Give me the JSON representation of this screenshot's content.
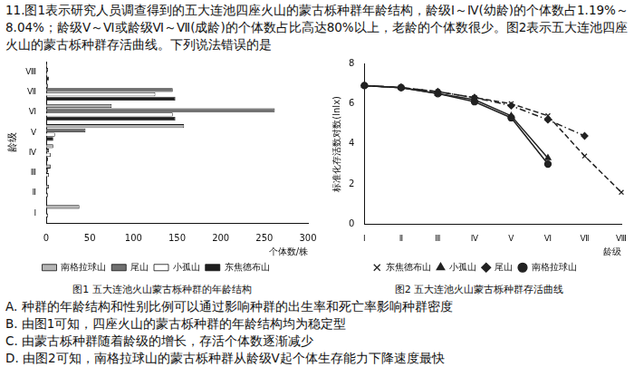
{
  "question": {
    "number": "11.",
    "stem": "图1表示研究人员调查得到的五大连池四座火山的蒙古栎种群年龄结构，龄级Ⅰ～Ⅳ(幼龄)的个体数占1.19%～8.04%；龄级Ⅴ～Ⅵ或龄级Ⅵ～Ⅶ(成龄)的个体数占比高达80%以上，老龄的个体数很少。图2表示五大连池四座火山的蒙古栎种群存活曲线。下列说法错误的是",
    "options": [
      {
        "label": "A.",
        "text": "种群的年龄结构和性别比例可以通过影响种群的出生率和死亡率影响种群密度"
      },
      {
        "label": "B.",
        "text": "由图1可知，四座火山的蒙古栎种群的年龄结构均为稳定型"
      },
      {
        "label": "C.",
        "text": "由蒙古栎种群随着龄级的增长，存活个体数逐渐减少"
      },
      {
        "label": "D.",
        "text": "由图2可知，南格拉球山的蒙古栎种群从龄级Ⅴ起个体生存能力下降速度最快"
      }
    ]
  },
  "chart_data": [
    {
      "type": "bar",
      "orientation": "horizontal",
      "title": "图1  五大连池火山蒙古栎种群的年龄结构",
      "x_label": "个体数/株",
      "y_label": "龄级",
      "categories": [
        "Ⅰ",
        "Ⅱ",
        "Ⅲ",
        "Ⅳ",
        "Ⅴ",
        "Ⅵ",
        "Ⅶ",
        "Ⅷ"
      ],
      "series": [
        {
          "name": "南格拉球山",
          "color": "#b5b5b5",
          "values": [
            38,
            3,
            5,
            8,
            158,
            75,
            2,
            1
          ]
        },
        {
          "name": "尾山",
          "color": "#707070",
          "values": [
            0,
            1,
            2,
            3,
            45,
            262,
            145,
            2
          ]
        },
        {
          "name": "小孤山",
          "color": "#ffffff",
          "values": [
            2,
            2,
            3,
            5,
            10,
            145,
            125,
            1
          ]
        },
        {
          "name": "东焦德布山",
          "color": "#1e1e1e",
          "values": [
            1,
            1,
            1,
            2,
            8,
            148,
            148,
            3
          ]
        }
      ],
      "xlim": [
        0,
        300
      ],
      "xticks": [
        0,
        50,
        100,
        150,
        200,
        250,
        300
      ],
      "grid": false,
      "legend": "bottom"
    },
    {
      "type": "line",
      "title": "图2  五大连池火山蒙古栎种群存活曲线",
      "x_label": "龄级",
      "y_label": "标准化存活数对数(lnlx)",
      "categories": [
        "Ⅰ",
        "Ⅱ",
        "Ⅲ",
        "Ⅳ",
        "Ⅴ",
        "Ⅵ",
        "Ⅶ",
        "Ⅷ"
      ],
      "series": [
        {
          "name": "东焦德布山",
          "color": "#222222",
          "marker": "cross",
          "line_style": "dashed",
          "values": [
            6.9,
            6.8,
            6.6,
            6.3,
            6.0,
            5.4,
            3.4,
            1.6
          ]
        },
        {
          "name": "小孤山",
          "color": "#222222",
          "marker": "triangle",
          "line_style": "solid",
          "values": [
            6.9,
            6.8,
            6.5,
            6.2,
            5.4,
            3.3,
            null,
            null
          ]
        },
        {
          "name": "尾山",
          "color": "#222222",
          "marker": "diamond",
          "line_style": "dashdot",
          "values": [
            6.9,
            6.8,
            6.6,
            6.3,
            5.9,
            5.2,
            4.4,
            null
          ]
        },
        {
          "name": "南格拉球山",
          "color": "#222222",
          "marker": "circle",
          "line_style": "solid",
          "values": [
            6.9,
            6.8,
            6.5,
            6.1,
            5.3,
            3.0,
            null,
            null
          ]
        }
      ],
      "ylim": [
        0,
        8
      ],
      "yticks": [
        0,
        2,
        4,
        6,
        8
      ],
      "grid": false,
      "legend": "bottom"
    }
  ]
}
